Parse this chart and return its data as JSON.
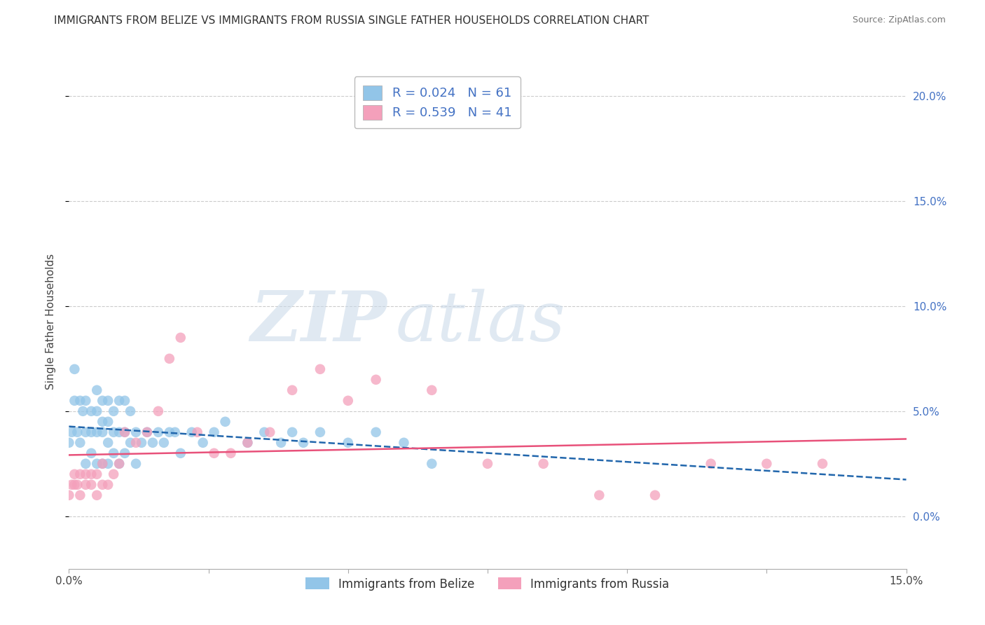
{
  "title": "IMMIGRANTS FROM BELIZE VS IMMIGRANTS FROM RUSSIA SINGLE FATHER HOUSEHOLDS CORRELATION CHART",
  "source": "Source: ZipAtlas.com",
  "ylabel": "Single Father Households",
  "legend_belize": "R = 0.024   N = 61",
  "legend_russia": "R = 0.539   N = 41",
  "legend_label_belize": "Immigrants from Belize",
  "legend_label_russia": "Immigrants from Russia",
  "color_belize": "#92c5e8",
  "color_russia": "#f4a0bb",
  "color_belize_line": "#2166ac",
  "color_russia_line": "#e8517a",
  "watermark_zip": "ZIP",
  "watermark_atlas": "atlas",
  "belize_x": [
    0.0,
    0.0005,
    0.001,
    0.001,
    0.0015,
    0.002,
    0.002,
    0.0025,
    0.003,
    0.003,
    0.003,
    0.004,
    0.004,
    0.004,
    0.005,
    0.005,
    0.005,
    0.005,
    0.006,
    0.006,
    0.006,
    0.006,
    0.007,
    0.007,
    0.007,
    0.007,
    0.008,
    0.008,
    0.008,
    0.009,
    0.009,
    0.009,
    0.01,
    0.01,
    0.01,
    0.011,
    0.011,
    0.012,
    0.012,
    0.013,
    0.014,
    0.015,
    0.016,
    0.017,
    0.018,
    0.019,
    0.02,
    0.022,
    0.024,
    0.026,
    0.028,
    0.032,
    0.035,
    0.038,
    0.04,
    0.042,
    0.045,
    0.05,
    0.055,
    0.06,
    0.065
  ],
  "belize_y": [
    0.035,
    0.04,
    0.055,
    0.07,
    0.04,
    0.035,
    0.055,
    0.05,
    0.025,
    0.04,
    0.055,
    0.03,
    0.04,
    0.05,
    0.025,
    0.04,
    0.05,
    0.06,
    0.025,
    0.04,
    0.045,
    0.055,
    0.025,
    0.035,
    0.045,
    0.055,
    0.03,
    0.04,
    0.05,
    0.025,
    0.04,
    0.055,
    0.03,
    0.04,
    0.055,
    0.035,
    0.05,
    0.025,
    0.04,
    0.035,
    0.04,
    0.035,
    0.04,
    0.035,
    0.04,
    0.04,
    0.03,
    0.04,
    0.035,
    0.04,
    0.045,
    0.035,
    0.04,
    0.035,
    0.04,
    0.035,
    0.04,
    0.035,
    0.04,
    0.035,
    0.025
  ],
  "russia_x": [
    0.0,
    0.0005,
    0.001,
    0.001,
    0.0015,
    0.002,
    0.002,
    0.003,
    0.003,
    0.004,
    0.004,
    0.005,
    0.005,
    0.006,
    0.006,
    0.007,
    0.008,
    0.009,
    0.01,
    0.012,
    0.014,
    0.016,
    0.018,
    0.02,
    0.023,
    0.026,
    0.029,
    0.032,
    0.036,
    0.04,
    0.045,
    0.05,
    0.055,
    0.065,
    0.075,
    0.085,
    0.095,
    0.105,
    0.115,
    0.125,
    0.135
  ],
  "russia_y": [
    0.01,
    0.015,
    0.015,
    0.02,
    0.015,
    0.01,
    0.02,
    0.015,
    0.02,
    0.015,
    0.02,
    0.01,
    0.02,
    0.015,
    0.025,
    0.015,
    0.02,
    0.025,
    0.04,
    0.035,
    0.04,
    0.05,
    0.075,
    0.085,
    0.04,
    0.03,
    0.03,
    0.035,
    0.04,
    0.06,
    0.07,
    0.055,
    0.065,
    0.06,
    0.025,
    0.025,
    0.01,
    0.01,
    0.025,
    0.025,
    0.025
  ],
  "xlim": [
    0.0,
    0.15
  ],
  "ylim": [
    -0.025,
    0.21
  ],
  "yticks_right": [
    0.0,
    0.05,
    0.1,
    0.15,
    0.2
  ],
  "xtick_labels": [
    "0.0%",
    "",
    "",
    "",
    "",
    "",
    "15.0%"
  ],
  "background_color": "#ffffff",
  "grid_color": "#cccccc",
  "title_fontsize": 11,
  "source_fontsize": 9,
  "tick_fontsize": 11,
  "right_tick_color": "#4472c4"
}
